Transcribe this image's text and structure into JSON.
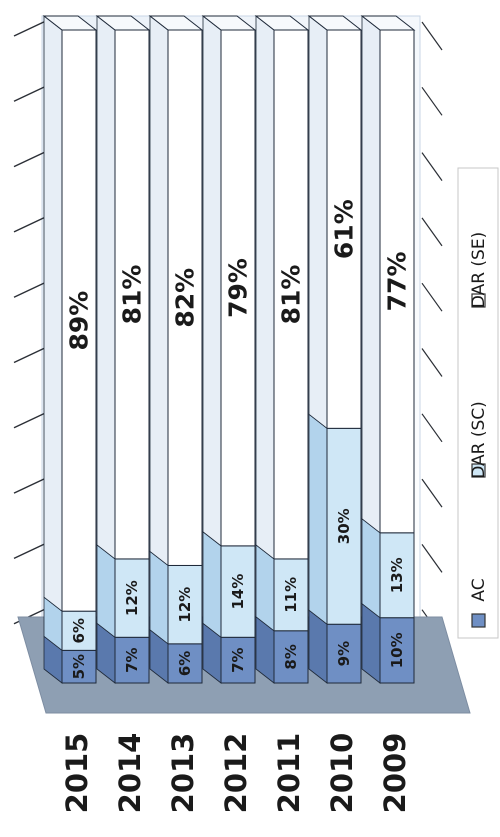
{
  "chart_data": {
    "type": "bar",
    "stacked": true,
    "percent_stacked": true,
    "orientation": "horizontal-rotated-page",
    "categories": [
      "2015",
      "2014",
      "2013",
      "2012",
      "2011",
      "2010",
      "2009"
    ],
    "series": [
      {
        "name": "AC",
        "values": [
          5,
          7,
          6,
          7,
          8,
          9,
          10
        ],
        "labels": [
          "5%",
          "7%",
          "6%",
          "7%",
          "8%",
          "9%",
          "10%"
        ],
        "color": "#6f8fc4"
      },
      {
        "name": "DAR (SC)",
        "values": [
          6,
          12,
          12,
          14,
          11,
          30,
          13
        ],
        "labels": [
          "6%",
          "12%",
          "12%",
          "14%",
          "11%",
          "30%",
          "13%"
        ],
        "color": "#cfe7f6"
      },
      {
        "name": "DAR (SE)",
        "values": [
          89,
          81,
          82,
          79,
          81,
          61,
          77
        ],
        "labels": [
          "89%",
          "81%",
          "82%",
          "79%",
          "81%",
          "61%",
          "77%"
        ],
        "color": "#ffffff"
      }
    ],
    "legend": {
      "position": "right",
      "items": [
        "AC",
        "DAR (SC)",
        "DAR (SE)"
      ]
    },
    "value_axis": {
      "min": 0,
      "max": 100,
      "gridlines": true
    },
    "colors": {
      "floor": "#8e9fb3",
      "wall": "#f2f6fb",
      "grid": "#2b2f36",
      "outline": "#1f2a3a"
    }
  }
}
